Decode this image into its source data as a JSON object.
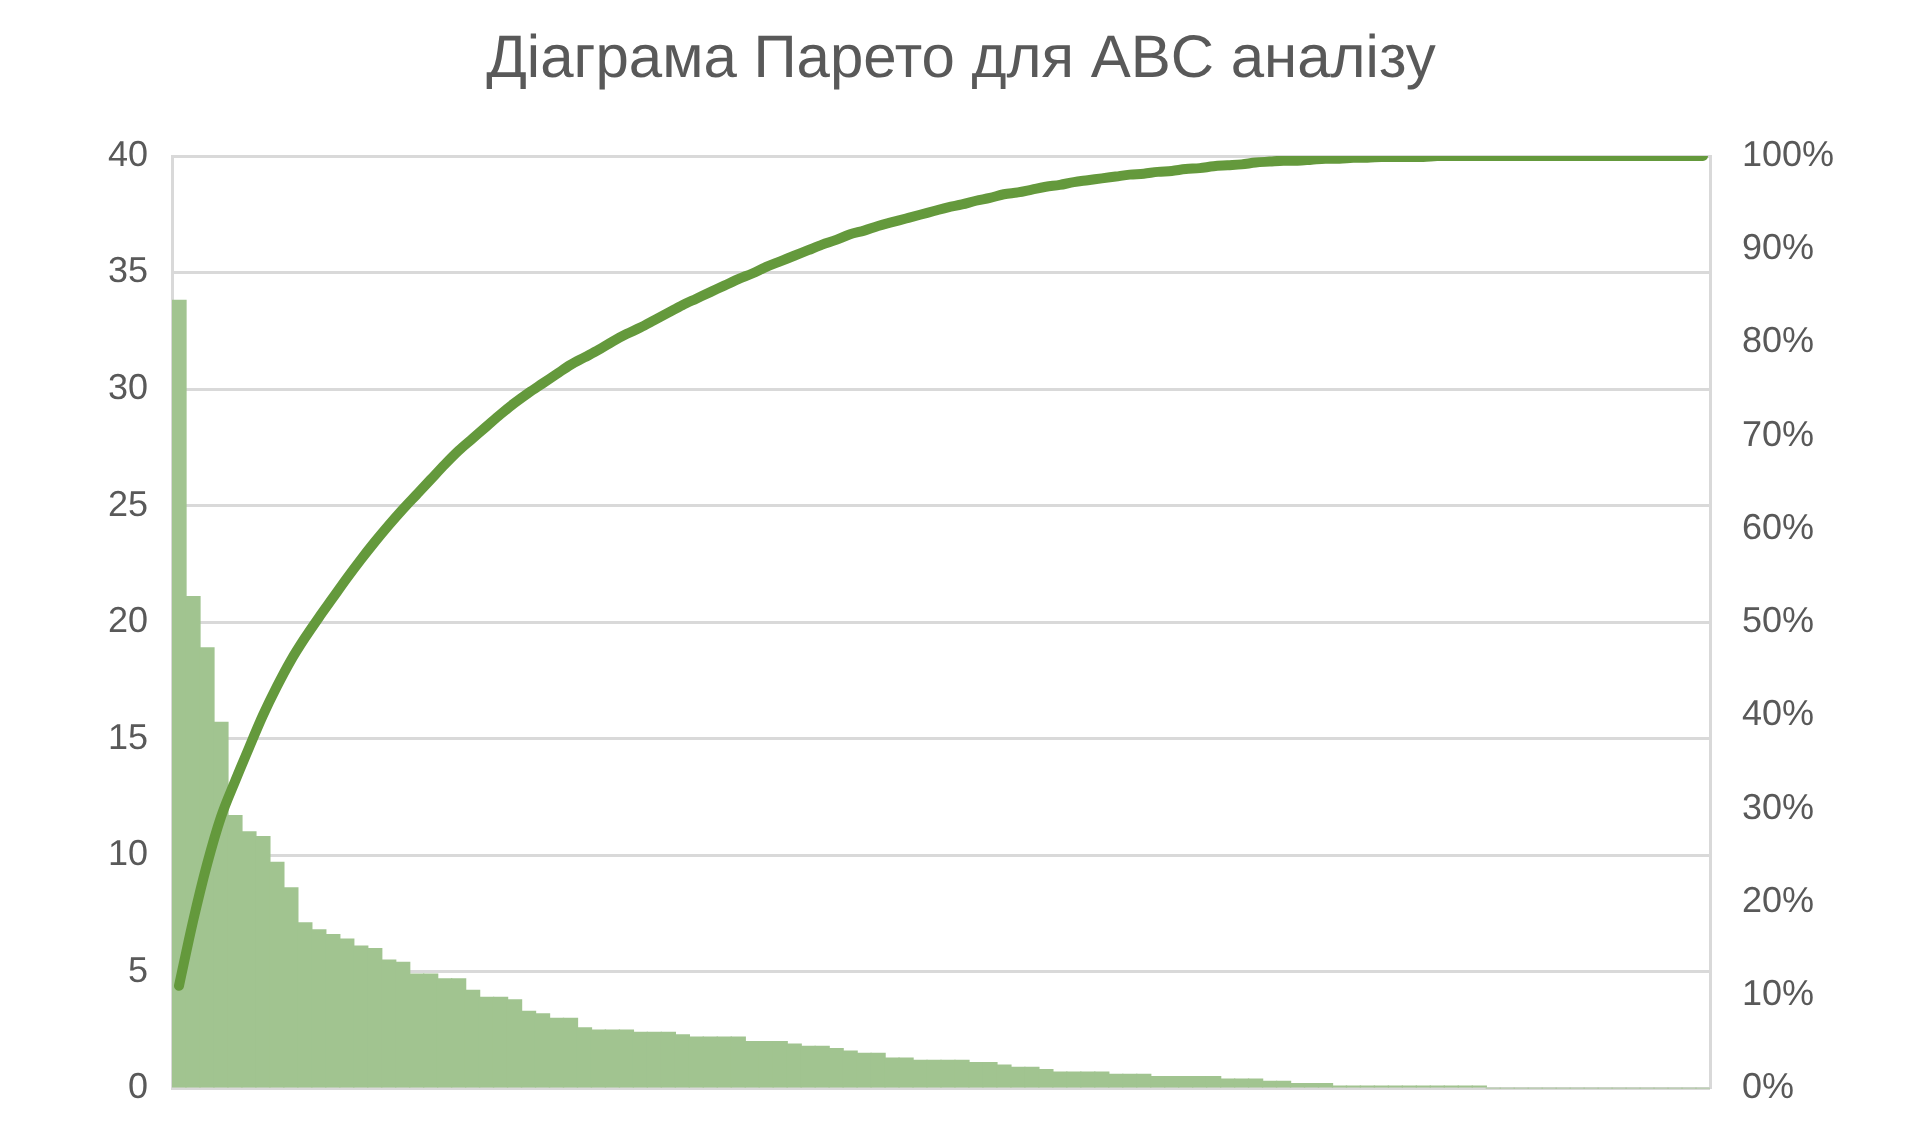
{
  "chart_data": {
    "type": "bar",
    "title": "Діаграма Парето для ABC аналізу",
    "categories": [
      null,
      null,
      null,
      null,
      null,
      null,
      null,
      null,
      null,
      null,
      null,
      null,
      null,
      null,
      null,
      null,
      null,
      null,
      null,
      null,
      null,
      null,
      null,
      null,
      null,
      null,
      null,
      null,
      null,
      null,
      null,
      null,
      null,
      null,
      null,
      null,
      null,
      null,
      null,
      null,
      null,
      null,
      null,
      null,
      null,
      null,
      null,
      null,
      null,
      null,
      null,
      null,
      null,
      null,
      null,
      null,
      null,
      null,
      null,
      null,
      null,
      null,
      null,
      null,
      null,
      null,
      null,
      null,
      null,
      null,
      null,
      null,
      null,
      null,
      null,
      null,
      null,
      null,
      null,
      null,
      null,
      null,
      null,
      null,
      null,
      null,
      null,
      null,
      null,
      null,
      null,
      null,
      null,
      null,
      null,
      null,
      null,
      null,
      null,
      null,
      null,
      null,
      null,
      null,
      null,
      null,
      null,
      null,
      null,
      null
    ],
    "series": [
      {
        "color": "#a1c490",
        "values": [
          33.8,
          21.1,
          18.9,
          15.7,
          11.7,
          11.0,
          10.8,
          9.7,
          8.6,
          7.1,
          6.8,
          6.6,
          6.4,
          6.1,
          6.0,
          5.5,
          5.4,
          4.9,
          4.9,
          4.7,
          4.7,
          4.2,
          3.9,
          3.9,
          3.8,
          3.3,
          3.2,
          3.0,
          3.0,
          2.6,
          2.5,
          2.5,
          2.5,
          2.4,
          2.4,
          2.4,
          2.3,
          2.2,
          2.2,
          2.2,
          2.2,
          2.0,
          2.0,
          2.0,
          1.9,
          1.8,
          1.8,
          1.7,
          1.6,
          1.5,
          1.5,
          1.3,
          1.3,
          1.2,
          1.2,
          1.2,
          1.2,
          1.1,
          1.1,
          1.0,
          0.9,
          0.9,
          0.8,
          0.7,
          0.7,
          0.7,
          0.7,
          0.6,
          0.6,
          0.6,
          0.5,
          0.5,
          0.5,
          0.5,
          0.5,
          0.4,
          0.4,
          0.4,
          0.3,
          0.3,
          0.2,
          0.2,
          0.2,
          0.1,
          0.1,
          0.1,
          0.1,
          0.1,
          0.1,
          0.1,
          0.1,
          0.1,
          0.1,
          0.1,
          0,
          0,
          0,
          0,
          0,
          0,
          0,
          0,
          0,
          0,
          0,
          0,
          0,
          0,
          0,
          0
        ]
      },
      {
        "type": "line",
        "axis": "y2",
        "color": "#64993c",
        "values": [
          11.0,
          17.9,
          24.0,
          29.1,
          32.9,
          36.5,
          40.0,
          43.1,
          45.9,
          48.3,
          50.5,
          52.6,
          54.7,
          56.7,
          58.6,
          60.4,
          62.1,
          63.7,
          65.3,
          66.9,
          68.4,
          69.7,
          71.0,
          72.3,
          73.5,
          74.6,
          75.6,
          76.6,
          77.6,
          78.4,
          79.2,
          80.1,
          80.9,
          81.6,
          82.4,
          83.2,
          84.0,
          84.7,
          85.4,
          86.1,
          86.8,
          87.4,
          88.1,
          88.7,
          89.3,
          89.9,
          90.5,
          91.0,
          91.6,
          92.0,
          92.5,
          92.9,
          93.3,
          93.7,
          94.1,
          94.5,
          94.8,
          95.2,
          95.5,
          95.9,
          96.1,
          96.4,
          96.7,
          96.9,
          97.2,
          97.4,
          97.6,
          97.8,
          98.0,
          98.1,
          98.3,
          98.4,
          98.6,
          98.7,
          98.9,
          99.0,
          99.1,
          99.3,
          99.4,
          99.5,
          99.5,
          99.6,
          99.7,
          99.7,
          99.8,
          99.8,
          99.9,
          99.9,
          99.9,
          99.9,
          100,
          100,
          100,
          100,
          100,
          100,
          100,
          100,
          100,
          100,
          100,
          100,
          100,
          100,
          100,
          100,
          100,
          100,
          100,
          100
        ]
      }
    ],
    "ylim": [
      0,
      40
    ],
    "yticks": [
      0,
      5,
      10,
      15,
      20,
      25,
      30,
      35,
      40
    ],
    "y2lim": [
      0,
      100
    ],
    "y2ticks": [
      {
        "value": 0,
        "label": "0%"
      },
      {
        "value": 10,
        "label": "10%"
      },
      {
        "value": 20,
        "label": "20%"
      },
      {
        "value": 30,
        "label": "30%"
      },
      {
        "value": 40,
        "label": "40%"
      },
      {
        "value": 50,
        "label": "50%"
      },
      {
        "value": 60,
        "label": "60%"
      },
      {
        "value": 70,
        "label": "70%"
      },
      {
        "value": 80,
        "label": "80%"
      },
      {
        "value": 90,
        "label": "90%"
      },
      {
        "value": 100,
        "label": "100%"
      }
    ],
    "grid": "y",
    "marker": "none",
    "line_style": "solid"
  }
}
